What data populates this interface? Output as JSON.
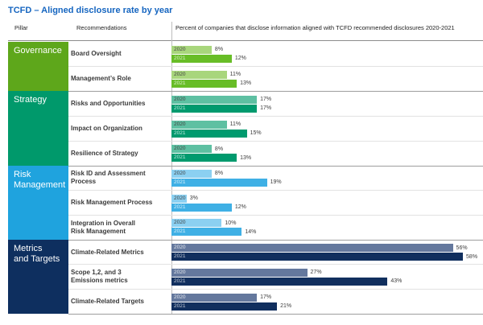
{
  "title": "TCFD – Aligned disclosure rate by year",
  "header": {
    "pillar": "Pillar",
    "recommendations": "Recommendations",
    "chart": "Percent of companies that disclose information aligned with TCFD recommended disclosures 2020-2021"
  },
  "chart_data": {
    "type": "bar",
    "orientation": "horizontal",
    "years": [
      "2020",
      "2021"
    ],
    "unit": "%",
    "axis_max": 62,
    "legend": "years are labeled inside each bar; values labeled at bar ends",
    "groups": [
      {
        "pillar": "Governance",
        "colors": {
          "block": "#5EA71B",
          "bar2020": "#A8D67C",
          "bar2021": "#68BD27",
          "text2020": "#3f3f3f",
          "text2021": "rgba(255,255,255,0.78)"
        },
        "rows": [
          {
            "label": "Board Oversight",
            "values": {
              "2020": 8,
              "2021": 12
            }
          },
          {
            "label": "Management’s Role",
            "values": {
              "2020": 11,
              "2021": 13
            }
          }
        ]
      },
      {
        "pillar": "Strategy",
        "colors": {
          "block": "#00996B",
          "bar2020": "#5EC0A2",
          "bar2021": "#009A6E",
          "text2020": "#3f3f3f",
          "text2021": "rgba(255,255,255,0.78)"
        },
        "rows": [
          {
            "label": "Risks and Opportunities",
            "values": {
              "2020": 17,
              "2021": 17
            }
          },
          {
            "label": "Impact on Organization",
            "values": {
              "2020": 11,
              "2021": 15
            }
          },
          {
            "label": "Resilience of Strategy",
            "values": {
              "2020": 8,
              "2021": 13
            }
          }
        ]
      },
      {
        "pillar": "Risk\nManagement",
        "colors": {
          "block": "#1FA3DE",
          "bar2020": "#8BD0F1",
          "bar2021": "#3FB0E5",
          "text2020": "#3f3f3f",
          "text2021": "rgba(255,255,255,0.82)"
        },
        "rows": [
          {
            "label": "Risk ID and Assessment Process",
            "values": {
              "2020": 8,
              "2021": 19
            }
          },
          {
            "label": "Risk Management Process",
            "values": {
              "2020": 3,
              "2021": 12
            }
          },
          {
            "label": "Integration in Overall\nRisk Management",
            "values": {
              "2020": 10,
              "2021": 14
            }
          }
        ]
      },
      {
        "pillar": "Metrics\nand Targets",
        "colors": {
          "block": "#0E2F5F",
          "bar2020": "#64789D",
          "bar2021": "#112F5E",
          "text2020": "rgba(255,255,255,0.85)",
          "text2021": "rgba(255,255,255,0.75)"
        },
        "rows": [
          {
            "label": "Climate-Related Metrics",
            "values": {
              "2020": 56,
              "2021": 58
            }
          },
          {
            "label": "Scope 1,2, and 3\nEmissions metrics",
            "values": {
              "2020": 27,
              "2021": 43
            }
          },
          {
            "label": "Climate-Related Targets",
            "values": {
              "2020": 17,
              "2021": 21
            }
          }
        ]
      }
    ]
  }
}
